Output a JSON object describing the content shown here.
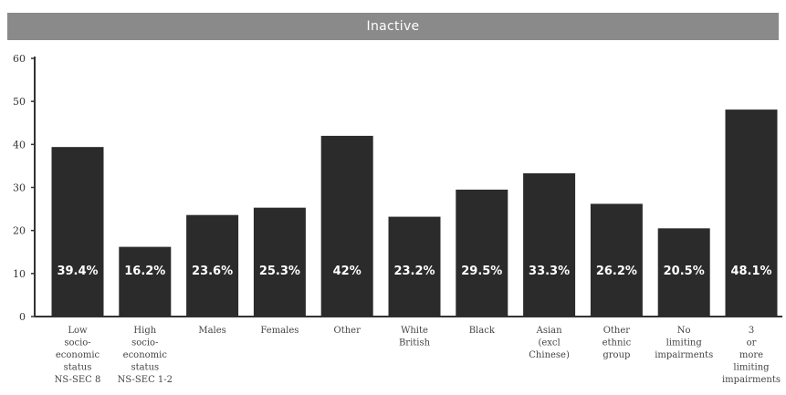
{
  "colors": {
    "header_bg": "#8a8a8a",
    "bar": "#2b2b2b",
    "axis": "#333333"
  },
  "chart_data": {
    "type": "bar",
    "title": "Inactive",
    "ylim": [
      0,
      60
    ],
    "yticks": [
      "0",
      "10",
      "20",
      "30",
      "40",
      "50",
      "60"
    ],
    "grid": false,
    "categories": [
      [
        "Low",
        "socio-",
        "economic",
        "status",
        "NS-SEC 8"
      ],
      [
        "High",
        "socio-",
        "economic",
        "status",
        "NS-SEC 1-2"
      ],
      [
        "Males"
      ],
      [
        "Females"
      ],
      [
        "Other"
      ],
      [
        "White",
        "British"
      ],
      [
        "Black"
      ],
      [
        "Asian",
        "(excl",
        "Chinese)"
      ],
      [
        "Other",
        "ethnic",
        "group"
      ],
      [
        "No",
        "limiting",
        "impairments"
      ],
      [
        "3",
        "or",
        "more",
        "limiting",
        "impairments"
      ]
    ],
    "values": [
      39.4,
      16.2,
      23.6,
      25.3,
      42,
      23.2,
      29.5,
      33.3,
      26.2,
      20.5,
      48.1
    ],
    "value_labels": [
      "39.4%",
      "16.2%",
      "23.6%",
      "25.3%",
      "42%",
      "23.2%",
      "29.5%",
      "33.3%",
      "26.2%",
      "20.5%",
      "48.1%"
    ]
  }
}
